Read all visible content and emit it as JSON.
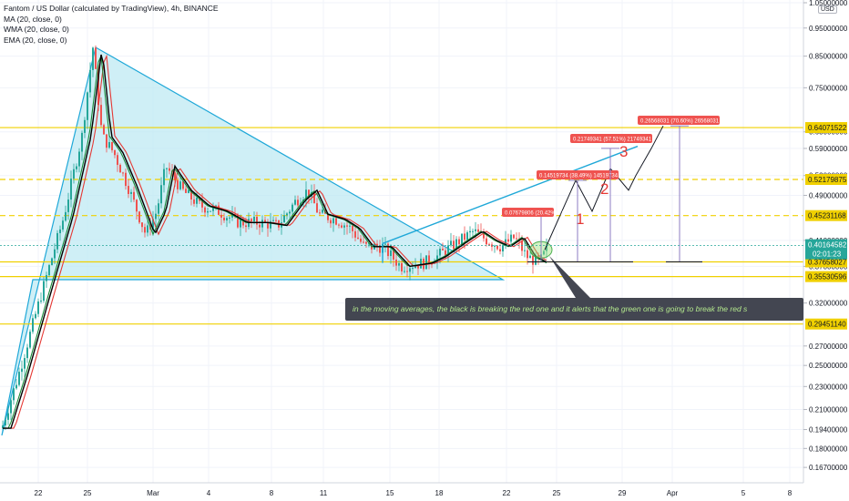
{
  "legend": {
    "title": "Fantom / US Dollar (calculated by TradingView), 4h, BINANCE",
    "ma": "MA (20, close, 0)",
    "wma": "WMA (20, close, 0)",
    "ema": "EMA (20, close, 0)"
  },
  "currency_badge": "USD",
  "annotation": "in the moving averages, the black is breaking the red one and it alerts that the green one is going to break the red s",
  "chart_data": {
    "type": "line",
    "title": "Fantom / US Dollar (calculated by TradingView), 4h, BINANCE",
    "y_scale": "log",
    "ylim": [
      0.16,
      1.05
    ],
    "y_ticks": [
      "0.16700000",
      "0.18000000",
      "0.19400000",
      "0.21000000",
      "0.23000000",
      "0.25000000",
      "0.27000000",
      "0.32000000",
      "0.37000000",
      "0.41000000",
      "0.49000000",
      "0.53000000",
      "0.59000000",
      "0.63000000",
      "0.75000000",
      "0.85000000",
      "0.95000000",
      "1.05000000"
    ],
    "x_ticks": [
      "22",
      "25",
      "Mar",
      "4",
      "8",
      "11",
      "15",
      "18",
      "22",
      "25",
      "29",
      "Apr",
      "5",
      "8"
    ],
    "levels": [
      {
        "label": "0.64071522",
        "value": 0.64071522,
        "style": "solid"
      },
      {
        "label": "0.52179875",
        "value": 0.52179875,
        "style": "dashed"
      },
      {
        "label": "0.45231168",
        "value": 0.45231168,
        "style": "dashed"
      },
      {
        "label": "0.37658027",
        "value": 0.37658027,
        "style": "solid"
      },
      {
        "label": "0.35530596",
        "value": 0.35530596,
        "style": "solid"
      },
      {
        "label": "0.29451140",
        "value": 0.2945114,
        "style": "solid"
      }
    ],
    "current_price": {
      "label": "0.40164582",
      "countdown": "02:01:23"
    },
    "targets": [
      {
        "label": "0.07679806 (20.42%) 7679806",
        "marker": "1"
      },
      {
        "label": "0.14519734 (38.49%) 14519734",
        "marker": "2"
      },
      {
        "label": "0.21749341 (57.51%) 21749341",
        "marker": "3"
      },
      {
        "label": "0.26568031 (70.60%) 26568031",
        "marker": ""
      }
    ],
    "series": [
      {
        "name": "MA (20, close, 0)",
        "color": "#e53935"
      },
      {
        "name": "WMA (20, close, 0)",
        "color": "#1b8a3a"
      },
      {
        "name": "EMA (20, close, 0)",
        "color": "#000000"
      }
    ],
    "colors": {
      "up": "#26a69a",
      "down": "#ef5350",
      "level": "#f0d000",
      "pattern": "#1fa8d8",
      "target": "#e53935"
    }
  }
}
